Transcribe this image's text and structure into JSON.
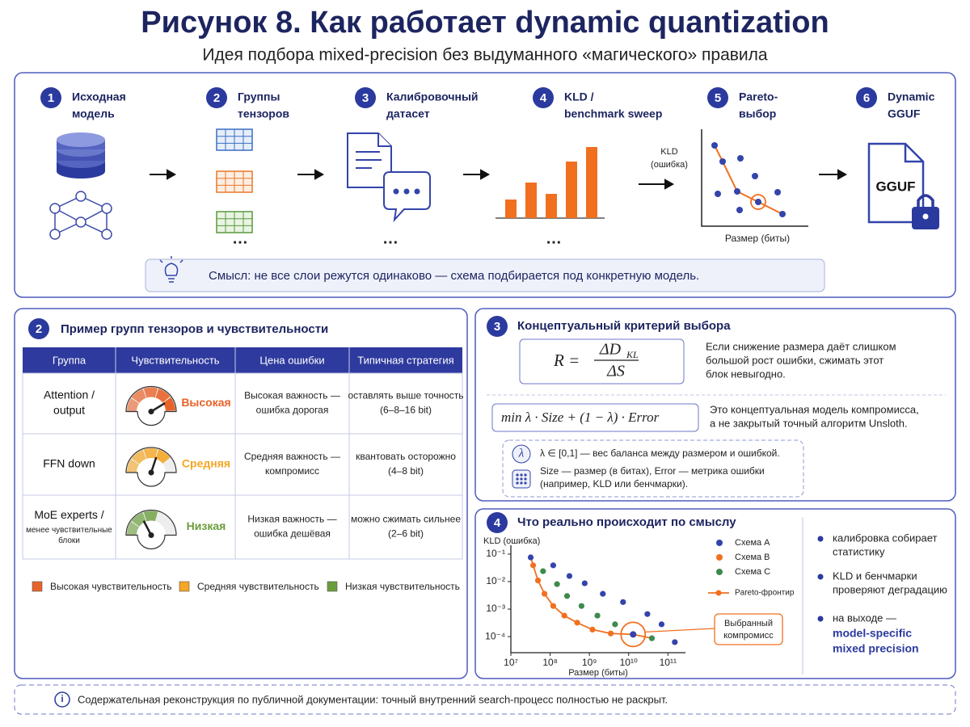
{
  "header": {
    "title": "Рисунок 8. Как работает dynamic quantization",
    "subtitle": "Идея подбора mixed-precision без выдуманного «магического» правила"
  },
  "pipeline": {
    "steps": [
      {
        "number": "1",
        "lines": [
          "Исходная",
          "модель"
        ]
      },
      {
        "number": "2",
        "lines": [
          "Группы",
          "тензоров"
        ]
      },
      {
        "number": "3",
        "lines": [
          "Калибровочный",
          "датасет"
        ]
      },
      {
        "number": "4",
        "lines": [
          "KLD /",
          "benchmark sweep"
        ]
      },
      {
        "number": "5",
        "lines": [
          "Pareto-",
          "выбор"
        ]
      },
      {
        "number": "6",
        "lines": [
          "Dynamic",
          "GGUF"
        ]
      }
    ],
    "ellipsis": "…",
    "error_axis": [
      "KLD",
      "(ошибка)"
    ],
    "size_axis": "Размер (биты)",
    "file_label": "GGUF",
    "insight": "Смысл: не все слои режутся одинаково — схема подбирается под конкретную модель."
  },
  "panel_groups": {
    "number": "2",
    "title": "Пример групп тензоров и чувствительности",
    "table": {
      "header": [
        "Группа",
        "Чувствительность",
        "Цена ошибки",
        "Типичная стратегия"
      ],
      "rows": [
        {
          "group": [
            "Attention /",
            "output"
          ],
          "sensitivity": "Высокая",
          "cost": [
            "Высокая важность —",
            "ошибка дорогая"
          ],
          "strategy": [
            "оставлять выше точность",
            "(6–8–16 bit)"
          ]
        },
        {
          "group": [
            "FFN down"
          ],
          "sensitivity": "Средняя",
          "cost": [
            "Средняя важность —",
            "компромисс"
          ],
          "strategy": [
            "квантовать осторожно",
            "(4–8 bit)"
          ]
        },
        {
          "group": [
            "MoE experts /"
          ],
          "group_note": [
            "менее чувствительные",
            "блоки"
          ],
          "sensitivity": "Низкая",
          "cost": [
            "Низкая важность —",
            "ошибка дешёвая"
          ],
          "strategy": [
            "можно сжимать сильнее",
            "(2–6 bit)"
          ]
        }
      ],
      "colors": [
        "#e8632a",
        "#f5a623",
        "#6a9e3c"
      ]
    },
    "legend": [
      "Высокая чувствительность",
      "Средняя чувствительность",
      "Низкая чувствительность"
    ]
  },
  "panel_criterion": {
    "number": "3",
    "title": "Концептуальный критерий выбора",
    "ratio": {
      "lhs": "R =",
      "numerator": "ΔD",
      "numerator_sub": "KL",
      "denominator": "ΔS"
    },
    "ratio_note": [
      "Если снижение размера даёт слишком",
      "большой рост ошибки, сжимать этот",
      "блок невыгодно."
    ],
    "objective": "min  λ · Size + (1 − λ) · Error",
    "objective_note": [
      "Это концептуальная модель компромисса,",
      "а не закрытый точный алгоритм Unsloth."
    ],
    "lambda_icon": "λ",
    "lambda_def": "λ ∈ [0,1] — вес баланса между размером и ошибкой.",
    "size_def": [
      "Size — размер (в битах),  Error — метрика ошибки",
      "(например, KLD или бенчмарки)."
    ]
  },
  "panel_meaning": {
    "number": "4",
    "title": "Что реально происходит по смыслу",
    "chart": {
      "type": "scatter",
      "ylabel": "KLD (ошибка)",
      "xlabel": "Размер (биты)",
      "xlog": true,
      "ylog": true,
      "xlim": [
        10000000.0,
        280000000000.0
      ],
      "ylim": [
        2.6e-05,
        0.21
      ],
      "xticks": [
        {
          "value": 10000000.0,
          "label": "10⁷"
        },
        {
          "value": 100000000.0,
          "label": "10⁸"
        },
        {
          "value": 1000000000.0,
          "label": "10⁹"
        },
        {
          "value": 10000000000.0,
          "label": "10¹⁰"
        },
        {
          "value": 100000000000.0,
          "label": "10¹¹"
        }
      ],
      "yticks": [
        {
          "value": 0.1,
          "label": "10⁻¹"
        },
        {
          "value": 0.01,
          "label": "10⁻²"
        },
        {
          "value": 0.001,
          "label": "10⁻³"
        },
        {
          "value": 0.0001,
          "label": "10⁻⁴"
        }
      ],
      "series": [
        {
          "name": "Схема A",
          "color": "#3344aa",
          "x": [
            32000000.0,
            120000000.0,
            310000000.0,
            760000000.0,
            2200000000.0,
            7200000000.0,
            30000000000.0,
            69000000000.0,
            150000000000.0
          ],
          "values": [
            0.076,
            0.039,
            0.016,
            0.0087,
            0.0036,
            0.0018,
            0.00066,
            0.00028,
            6.3e-05
          ]
        },
        {
          "name": "Схема B",
          "color": "#f07020",
          "x": [
            37000000.0,
            49000000.0,
            72000000.0,
            120000000.0,
            230000000.0,
            490000000.0,
            1200000000.0,
            3500000000.0
          ],
          "values": [
            0.039,
            0.011,
            0.0036,
            0.0013,
            0.00058,
            0.00032,
            0.00018,
            0.00013
          ]
        },
        {
          "name": "Схема C",
          "color": "#3d8a4e",
          "x": [
            66000000.0,
            150000000.0,
            270000000.0,
            630000000.0,
            1600000000.0,
            4500000000.0,
            39000000000.0
          ],
          "values": [
            0.024,
            0.0081,
            0.003,
            0.0013,
            0.00058,
            0.00028,
            8.7e-05
          ]
        }
      ],
      "frontier": {
        "name": "Pareto-фронтир",
        "color": "#f07020",
        "x": [
          32000000.0,
          37000000.0,
          49000000.0,
          72000000.0,
          120000000.0,
          230000000.0,
          490000000.0,
          1200000000.0,
          3500000000.0,
          13000000000.0,
          39000000000.0
        ],
        "values": [
          0.076,
          0.039,
          0.011,
          0.0036,
          0.0013,
          0.00058,
          0.00032,
          0.00018,
          0.00013,
          0.00012,
          8.7e-05
        ]
      },
      "selected": {
        "label": [
          "Выбранный",
          "компромисс"
        ],
        "x": 13000000000.0,
        "value": 0.00012,
        "color": "#3344aa"
      }
    },
    "bullets": [
      [
        "калибровка собирает",
        "статистику"
      ],
      [
        "KLD и бенчмарки",
        "проверяют деградацию"
      ]
    ],
    "output": {
      "lead": "на выходе —",
      "highlight": [
        "model-specific",
        "mixed precision"
      ]
    }
  },
  "footer": "Содержательная реконструкция по публичной документации: точный внутренний search-процесс полностью не раскрыт."
}
